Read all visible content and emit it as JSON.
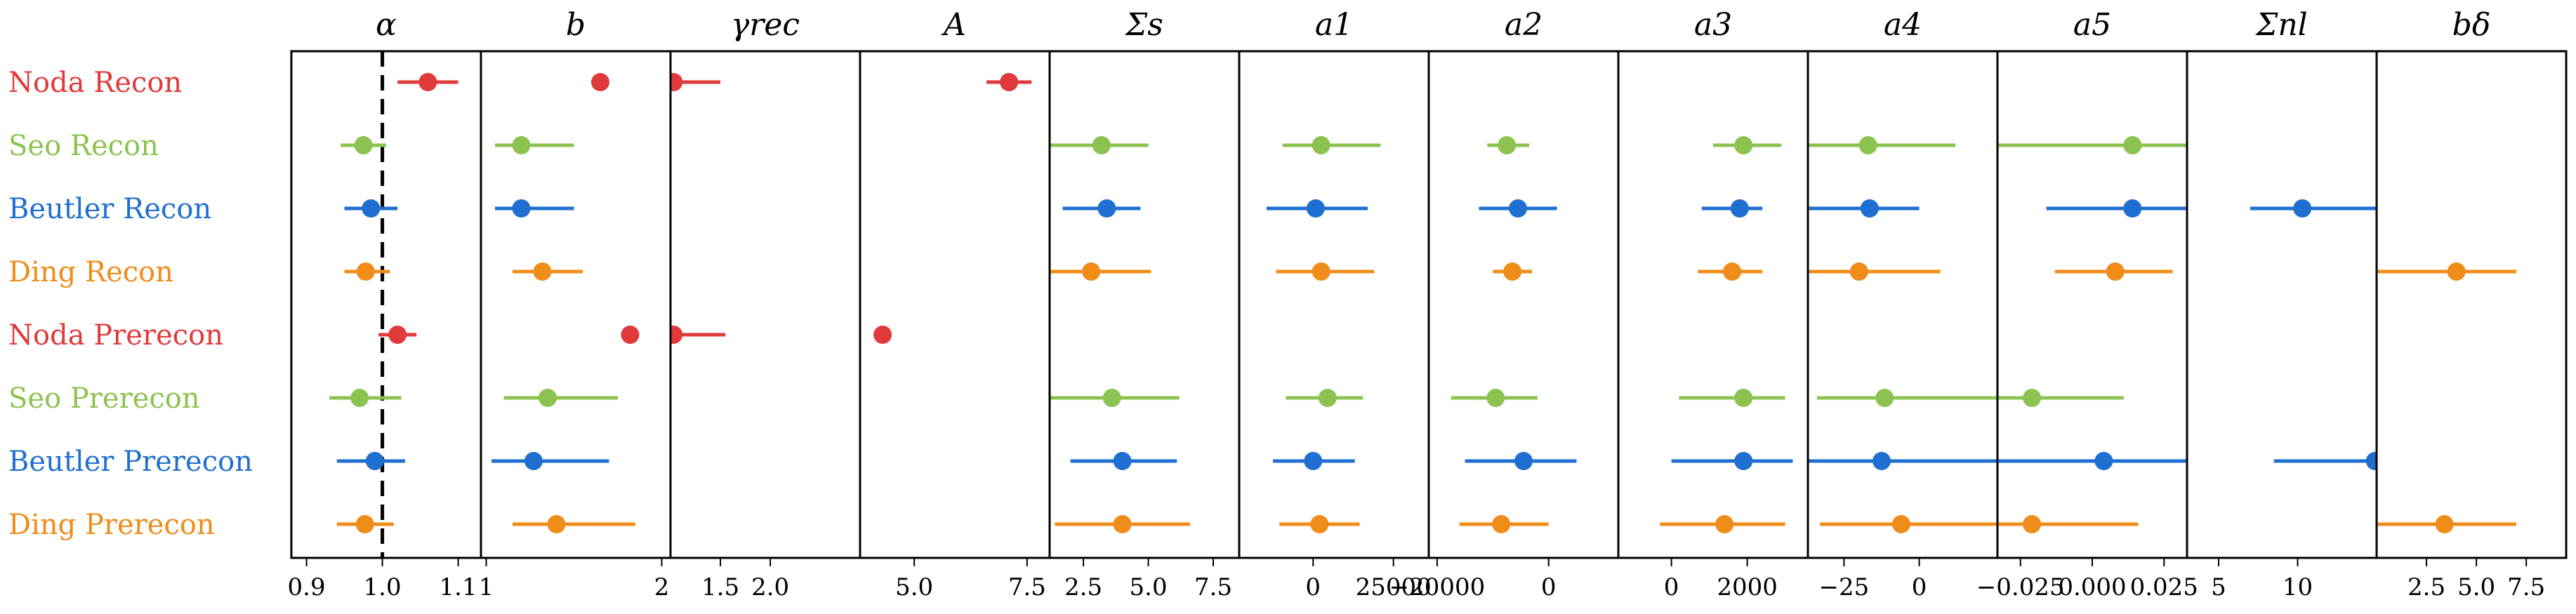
{
  "chart_data": {
    "type": "scatter",
    "colors": {
      "Noda": "#e03a3a",
      "Seo": "#8cc350",
      "Beutler": "#1f6fd0",
      "Ding": "#f08c1a"
    },
    "rows": [
      {
        "label": "Noda Recon",
        "group": "Noda"
      },
      {
        "label": "Seo Recon",
        "group": "Seo"
      },
      {
        "label": "Beutler Recon",
        "group": "Beutler"
      },
      {
        "label": "Ding Recon",
        "group": "Ding"
      },
      {
        "label": "Noda Prerecon",
        "group": "Noda"
      },
      {
        "label": "Seo Prerecon",
        "group": "Seo"
      },
      {
        "label": "Beutler Prerecon",
        "group": "Beutler"
      },
      {
        "label": "Ding Prerecon",
        "group": "Ding"
      }
    ],
    "panels": [
      {
        "title": "α",
        "xlim": [
          0.88,
          1.13
        ],
        "ticks": [
          0.9,
          1.0,
          1.1
        ],
        "tick_labels": [
          "0.9",
          "1.0",
          "1.1"
        ],
        "reference_line": 1.0,
        "points": [
          [
            1.06,
            1.02,
            1.1
          ],
          [
            0.975,
            0.945,
            1.005
          ],
          [
            0.985,
            0.95,
            1.02
          ],
          [
            0.978,
            0.95,
            1.01
          ],
          [
            1.02,
            0.995,
            1.045
          ],
          [
            0.97,
            0.93,
            1.025
          ],
          [
            0.99,
            0.94,
            1.03
          ],
          [
            0.977,
            0.94,
            1.015
          ]
        ]
      },
      {
        "title": "b",
        "xlim": [
          0.97,
          2.05
        ],
        "ticks": [
          1,
          2
        ],
        "tick_labels": [
          "1",
          "2"
        ],
        "points": [
          [
            1.65,
            null,
            null
          ],
          [
            1.2,
            1.05,
            1.5
          ],
          [
            1.2,
            1.05,
            1.5
          ],
          [
            1.32,
            1.15,
            1.55
          ],
          [
            1.82,
            null,
            null
          ],
          [
            1.35,
            1.1,
            1.75
          ],
          [
            1.27,
            1.03,
            1.7
          ],
          [
            1.4,
            1.15,
            1.85
          ]
        ]
      },
      {
        "title": "γrec",
        "xlim": [
          1.0,
          2.9
        ],
        "ticks": [
          1.5,
          2.0
        ],
        "tick_labels": [
          "1.5",
          "2.0"
        ],
        "points": [
          [
            1.03,
            1.0,
            1.5
          ],
          null,
          null,
          null,
          [
            1.03,
            1.0,
            1.55
          ],
          null,
          null,
          null
        ]
      },
      {
        "title": "A",
        "xlim": [
          3.8,
          8.0
        ],
        "ticks": [
          5.0,
          7.5
        ],
        "tick_labels": [
          "5.0",
          "7.5"
        ],
        "points": [
          [
            7.1,
            6.6,
            7.6
          ],
          null,
          null,
          null,
          [
            4.3,
            4.1,
            4.5
          ],
          null,
          null,
          null
        ]
      },
      {
        "title": "Σs",
        "xlim": [
          1.2,
          8.5
        ],
        "ticks": [
          2.5,
          5.0,
          7.5
        ],
        "tick_labels": [
          "2.5",
          "5.0",
          "7.5"
        ],
        "points": [
          null,
          [
            3.2,
            1.2,
            5.0
          ],
          [
            3.4,
            1.7,
            4.7
          ],
          [
            2.8,
            1.2,
            5.1
          ],
          null,
          [
            3.6,
            1.2,
            6.2
          ],
          [
            4.0,
            2.0,
            6.1
          ],
          [
            4.0,
            1.4,
            6.6
          ]
        ]
      },
      {
        "title": "a1",
        "xlim": [
          -23000,
          36000
        ],
        "ticks": [
          0,
          25000
        ],
        "tick_labels": [
          "0",
          "25000"
        ],
        "points": [
          null,
          [
            2500,
            -9500,
            21000
          ],
          [
            800,
            -14500,
            17000
          ],
          [
            2500,
            -11500,
            19000
          ],
          null,
          [
            4500,
            -8500,
            15500
          ],
          [
            0,
            -12500,
            13000
          ],
          [
            2000,
            -10500,
            14500
          ]
        ]
      },
      {
        "title": "a2",
        "xlim": [
          -21500,
          12500
        ],
        "ticks": [
          -20000,
          0
        ],
        "tick_labels": [
          "−20000",
          "0"
        ],
        "points": [
          null,
          [
            -7500,
            -11000,
            -3500
          ],
          [
            -5500,
            -12500,
            1500
          ],
          [
            -6500,
            -10000,
            -3000
          ],
          null,
          [
            -9500,
            -17500,
            -2000
          ],
          [
            -4500,
            -15000,
            5000
          ],
          [
            -8500,
            -16000,
            0
          ]
        ]
      },
      {
        "title": "a3",
        "xlim": [
          -1400,
          3600
        ],
        "ticks": [
          0,
          2000
        ],
        "tick_labels": [
          "0",
          "2000"
        ],
        "points": [
          null,
          [
            1900,
            1100,
            2900
          ],
          [
            1800,
            800,
            2400
          ],
          [
            1600,
            700,
            2400
          ],
          null,
          [
            1900,
            200,
            3000
          ],
          [
            1900,
            0,
            3200
          ],
          [
            1400,
            -300,
            3000
          ]
        ]
      },
      {
        "title": "a4",
        "xlim": [
          -37,
          26
        ],
        "ticks": [
          -25,
          0
        ],
        "tick_labels": [
          "−25",
          "0"
        ],
        "points": [
          null,
          [
            -17,
            -37,
            12
          ],
          [
            -16.5,
            -37,
            0
          ],
          [
            -20,
            -37,
            7
          ],
          null,
          [
            -11.5,
            -34,
            26
          ],
          [
            -12.5,
            -37,
            26
          ],
          [
            -6,
            -33,
            26
          ]
        ]
      },
      {
        "title": "a5",
        "xlim": [
          -0.033,
          0.033
        ],
        "ticks": [
          -0.025,
          0.0,
          0.025
        ],
        "tick_labels": [
          "−0.025",
          "0.000",
          "0.025"
        ],
        "points": [
          null,
          [
            0.014,
            -0.033,
            0.033
          ],
          [
            0.014,
            -0.016,
            0.033
          ],
          [
            0.008,
            -0.013,
            0.028
          ],
          null,
          [
            -0.021,
            -0.033,
            0.011
          ],
          [
            0.004,
            -0.033,
            0.033
          ],
          [
            -0.021,
            -0.033,
            0.016
          ]
        ]
      },
      {
        "title": "Σnl",
        "xlim": [
          3.0,
          15.0
        ],
        "ticks": [
          5,
          10
        ],
        "tick_labels": [
          "5",
          "10"
        ],
        "points": [
          null,
          null,
          [
            10.3,
            7.0,
            15.0
          ],
          null,
          null,
          null,
          [
            14.9,
            8.5,
            15.0
          ],
          null
        ]
      },
      {
        "title": "bδ",
        "xlim": [
          0.0,
          9.5
        ],
        "ticks": [
          2.5,
          5.0,
          7.5
        ],
        "tick_labels": [
          "2.5",
          "5.0",
          "7.5"
        ],
        "points": [
          null,
          null,
          null,
          [
            4.0,
            0.0,
            7.0
          ],
          null,
          null,
          null,
          [
            3.4,
            0.0,
            7.0
          ]
        ]
      }
    ]
  }
}
